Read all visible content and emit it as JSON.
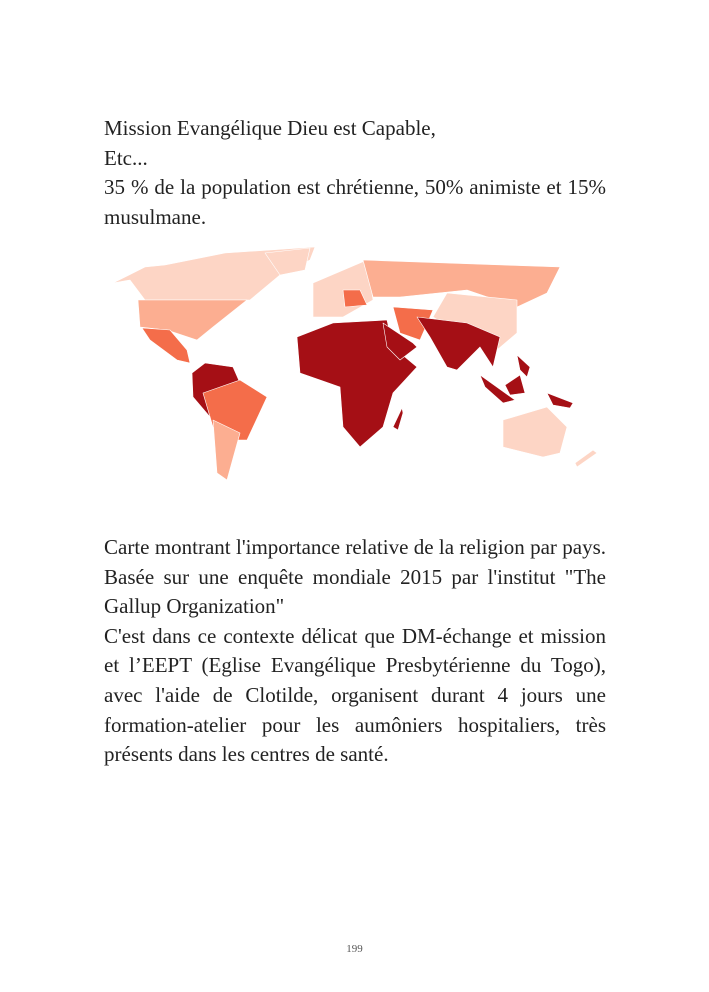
{
  "intro_lines": [
    "Mission Evangélique Dieu est Capable,",
    "Etc...",
    "35 % de la population est chrétienne, 50% animiste et 15% musulmane."
  ],
  "map": {
    "colors": {
      "lowest": "#fdd5c5",
      "low": "#fcae91",
      "medium": "#f46d4a",
      "high": "#a50f15"
    }
  },
  "caption": "Carte montrant l'importance relative de la religion par pays. Basée sur une enquête mondiale 2015 par l'institut \"The Gallup Organization\"",
  "body": "C'est dans ce contexte délicat que DM-échange et mission et l’EEPT (Eglise Evangélique Presbytérienne du Togo), avec l'aide de Clotilde, organisent durant 4 jours une formation-atelier pour les aumôniers hospitaliers, très présents dans les centres de santé.",
  "page_number": "199"
}
